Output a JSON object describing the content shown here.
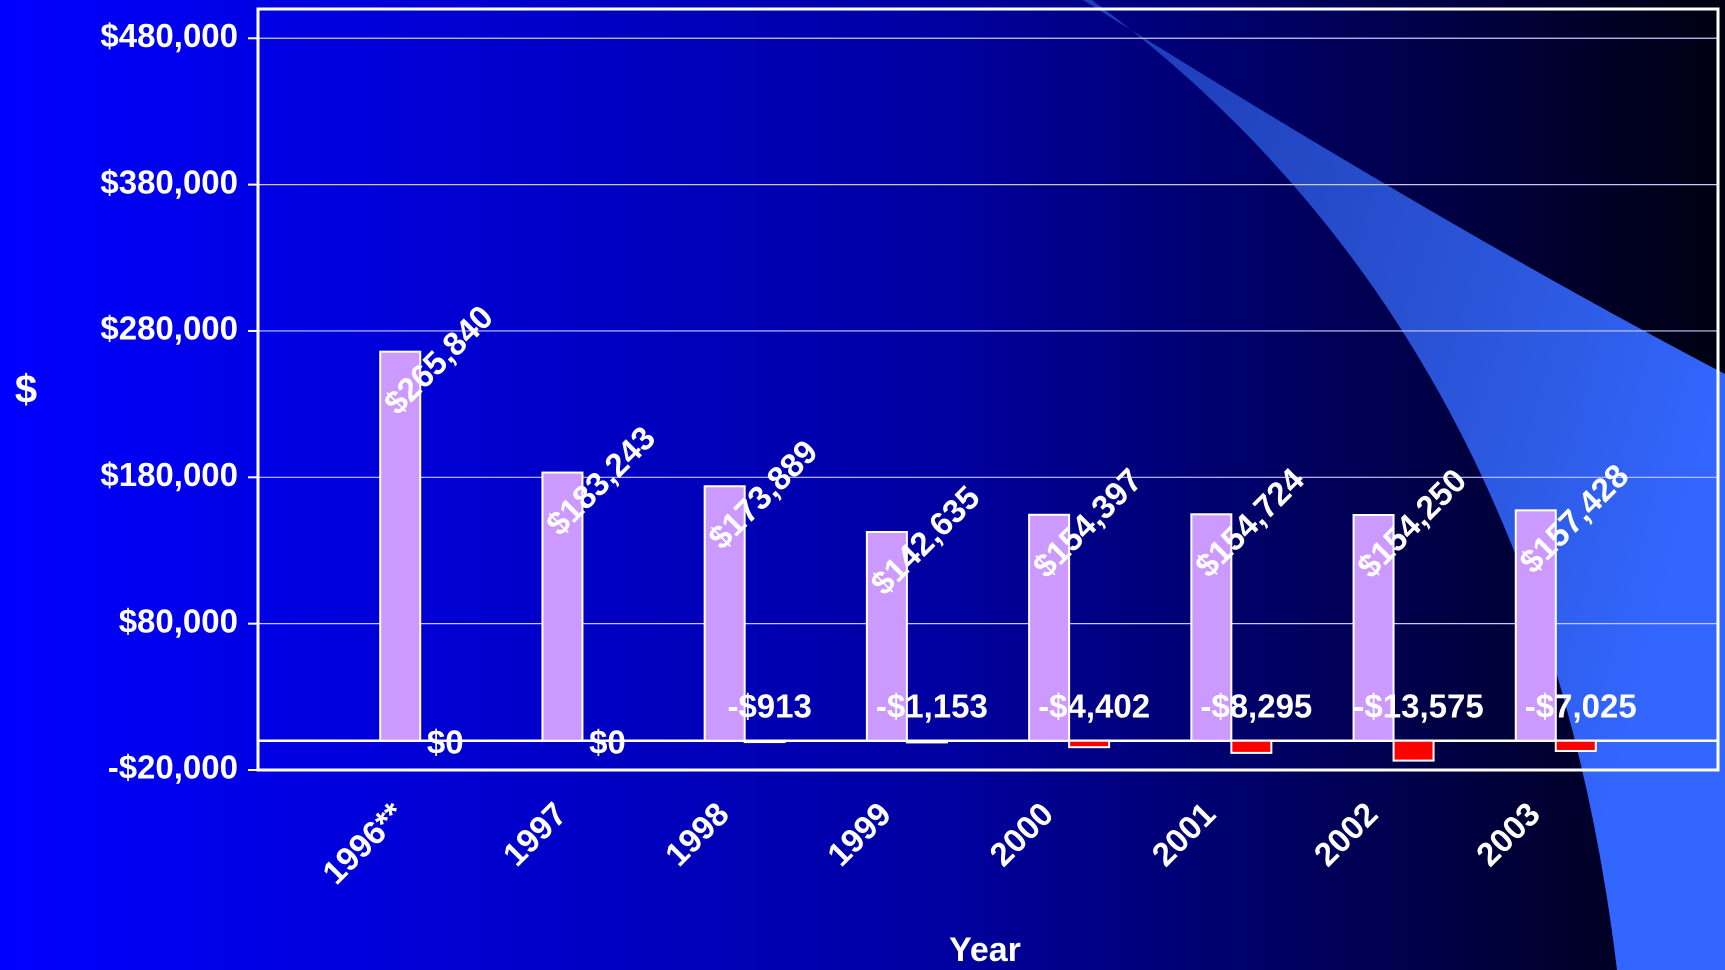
{
  "chart_data": {
    "type": "bar",
    "y_label": "$",
    "x_label": "Year",
    "categories": [
      "1996**",
      "1997",
      "1998",
      "1999",
      "2000",
      "2001",
      "2002",
      "2003"
    ],
    "series": [
      {
        "color": "#cc99ff",
        "values": [
          265840,
          183243,
          173889,
          142635,
          154397,
          154724,
          154250,
          157428
        ],
        "value_labels": [
          "$265,840",
          "$183,243",
          "$173,889",
          "$142,635",
          "$154,397",
          "$154,724",
          "$154,250",
          "$157,428"
        ],
        "value_label_colors": [
          "#ffffff",
          "#ffffff",
          "#ffffff",
          "#ffffff",
          "#ffffff",
          "#ffffff",
          "#ffffff",
          "#ffffff"
        ]
      },
      {
        "color": "#ff0000",
        "values": [
          0,
          0,
          -913,
          -1153,
          -4402,
          -8295,
          -13575,
          -7025
        ],
        "value_labels": [
          "$0",
          "$0",
          "-$913",
          "-$1,153",
          "-$4,402",
          "-$8,295",
          "-$13,575",
          "-$7,025"
        ],
        "value_label_colors": [
          "#ffffff",
          "#ffffff",
          "#ffffff",
          "#ffffff",
          "#ffffff",
          "#ffffff",
          "#ffffff",
          "#ff0000"
        ]
      }
    ],
    "ylim": [
      -20000,
      500000
    ],
    "yticks": [
      {
        "value": -20000,
        "label": "-$20,000"
      },
      {
        "value": 80000,
        "label": "$80,000"
      },
      {
        "value": 180000,
        "label": "$180,000"
      },
      {
        "value": 280000,
        "label": "$280,000"
      },
      {
        "value": 380000,
        "label": "$380,000"
      },
      {
        "value": 480000,
        "label": "$480,000"
      }
    ],
    "grid": true
  }
}
